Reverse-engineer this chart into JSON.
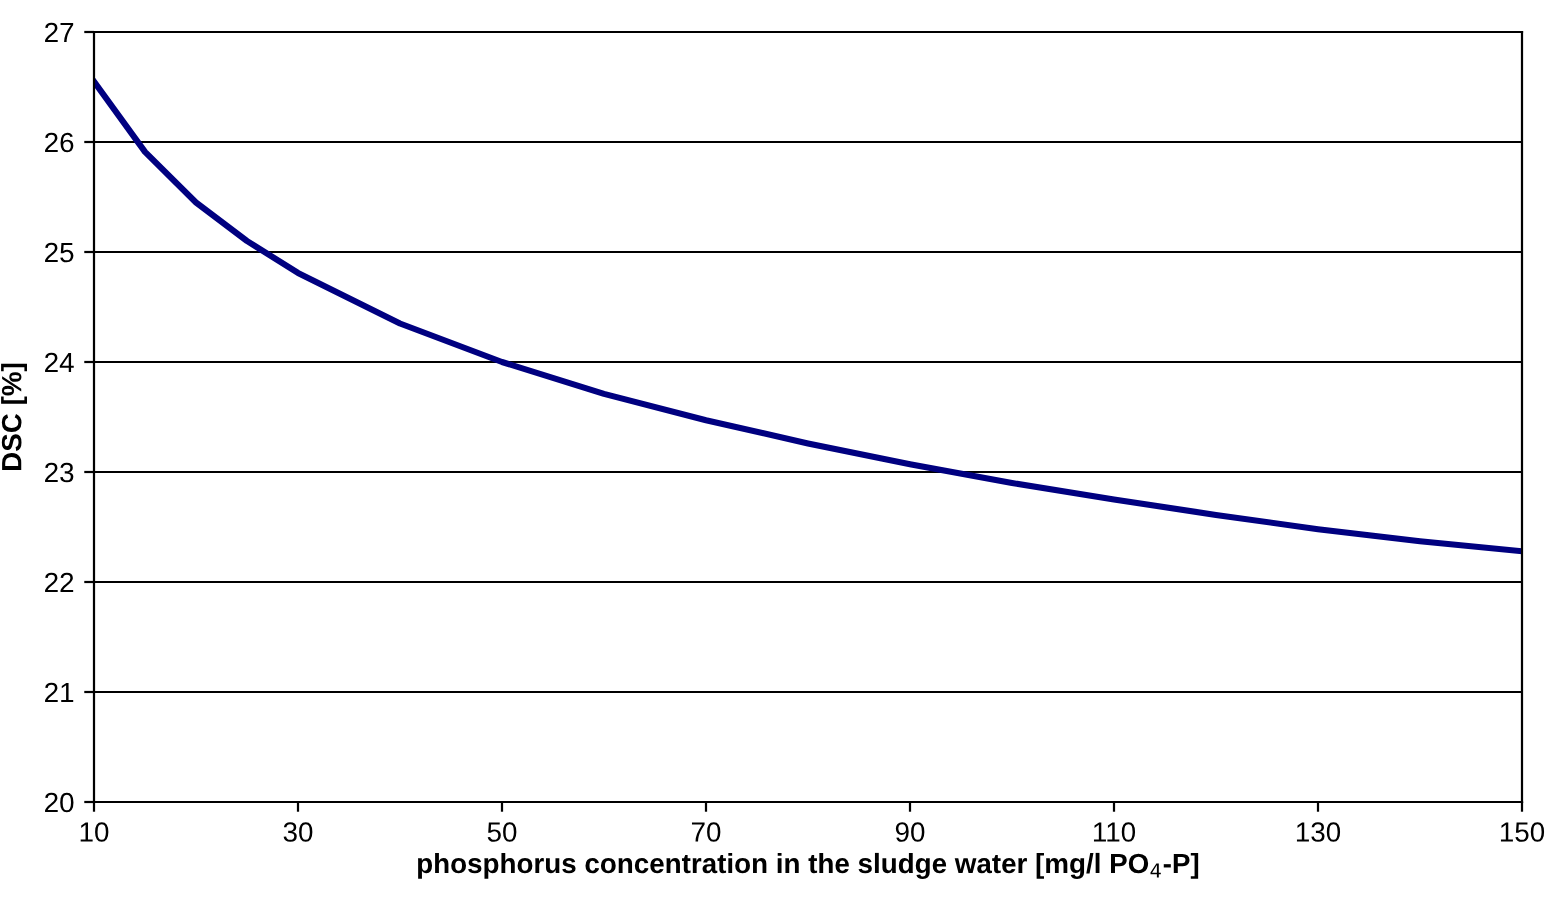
{
  "chart_data": {
    "type": "line",
    "xlabel": "phosphorus concentration in the sludge water [mg/l PO$_{4}$-P]",
    "ylabel": "DSC [%]",
    "x": [
      10,
      15,
      20,
      25,
      30,
      40,
      50,
      60,
      70,
      80,
      90,
      100,
      110,
      120,
      130,
      140,
      150
    ],
    "series": [
      {
        "color": "#000080",
        "values": [
          26.55,
          25.91,
          25.45,
          25.1,
          24.81,
          24.35,
          24.0,
          23.71,
          23.47,
          23.26,
          23.07,
          22.9,
          22.75,
          22.61,
          22.48,
          22.37,
          22.28
        ]
      }
    ],
    "xlim": [
      10,
      150
    ],
    "xticks": [
      10,
      30,
      50,
      70,
      90,
      110,
      130,
      150
    ],
    "ylim": [
      20,
      27
    ],
    "yticks": [
      20,
      21,
      22,
      23,
      24,
      25,
      26,
      27
    ],
    "grid": "y",
    "line_style": "solid",
    "marker": "none"
  }
}
